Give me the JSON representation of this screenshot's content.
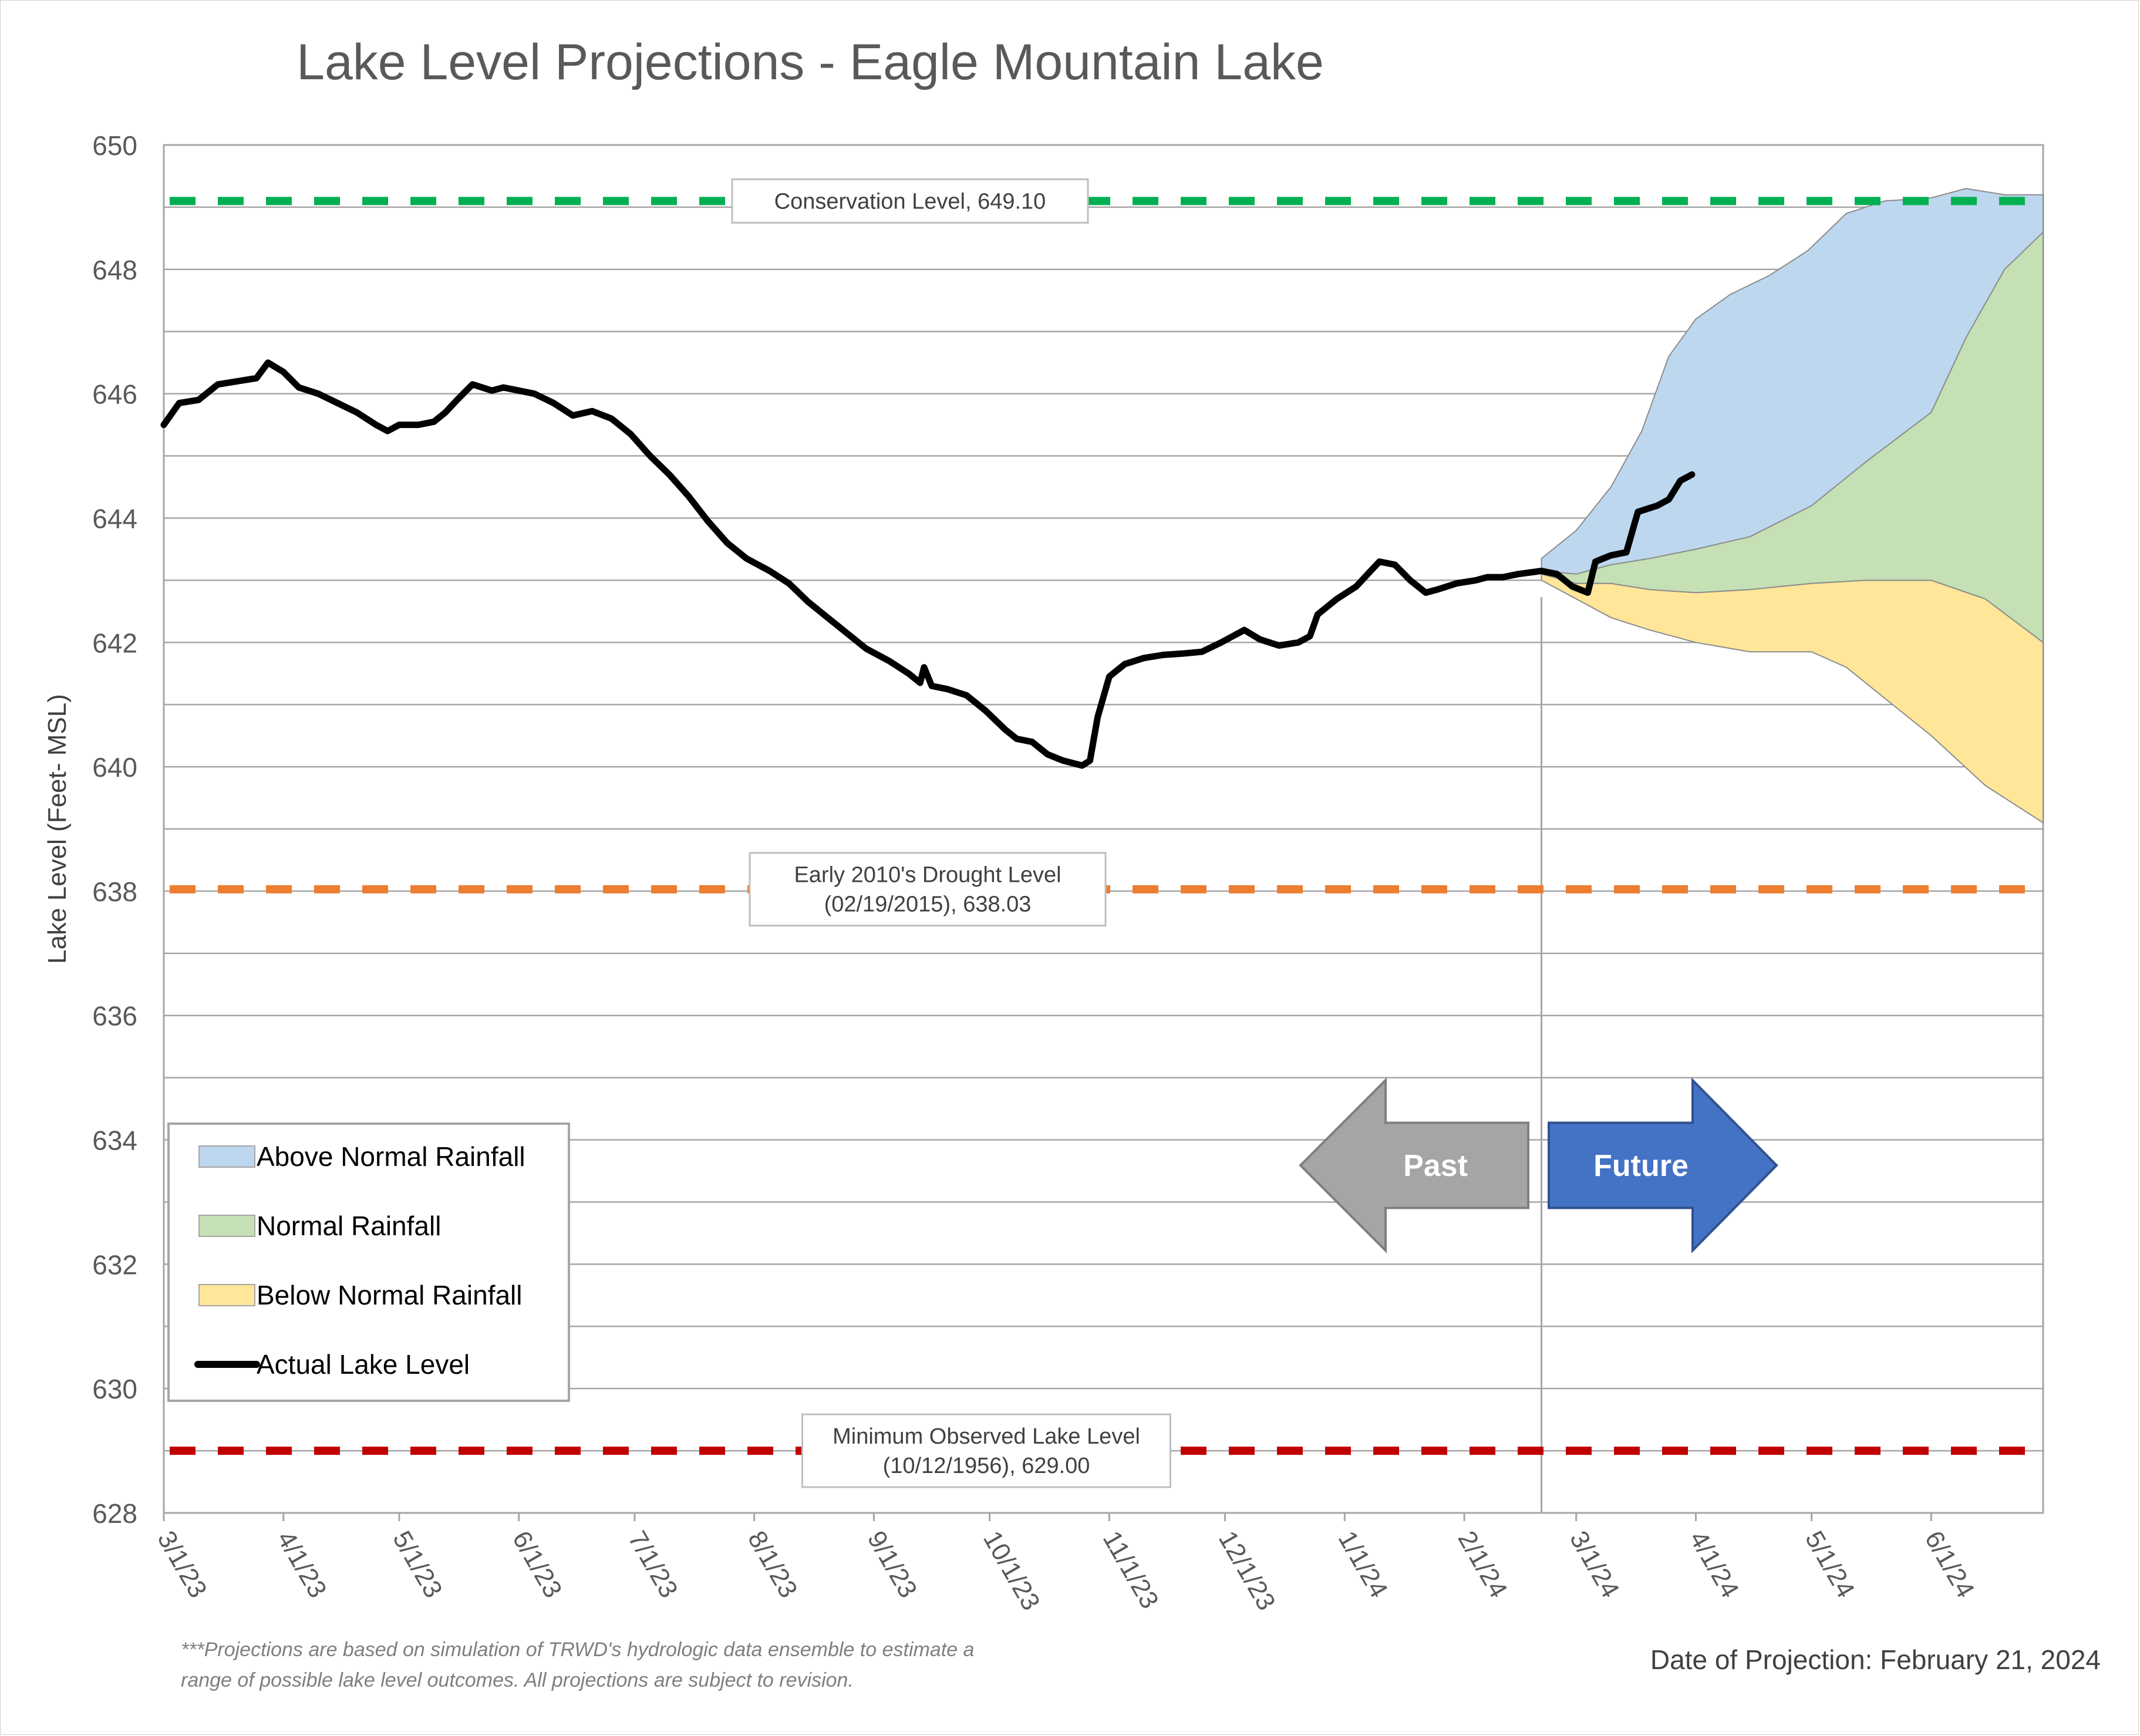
{
  "chart_data": {
    "type": "area",
    "title": "Lake Level Projections - Eagle Mountain Lake",
    "ylabel": "Lake Level (Feet- MSL)",
    "xlabel": "",
    "ylim": [
      628,
      650
    ],
    "y_ticks": [
      628,
      630,
      632,
      634,
      636,
      638,
      640,
      642,
      644,
      646,
      648,
      650
    ],
    "x_ticks": [
      "3/1/23",
      "4/1/23",
      "5/1/23",
      "6/1/23",
      "7/1/23",
      "8/1/23",
      "9/1/23",
      "10/1/23",
      "11/1/23",
      "12/1/23",
      "1/1/24",
      "2/1/24",
      "3/1/24",
      "4/1/24",
      "5/1/24",
      "6/1/24"
    ],
    "x_range": [
      "2023-03-01",
      "2024-06-30"
    ],
    "projection_date_marker": "2024-02-21",
    "grid": "horizontal",
    "legend_position": "bottom-left",
    "colors": {
      "above": "#bdd7ee",
      "normal": "#c5e0b4",
      "below": "#ffe699",
      "actual": "#000000",
      "conservation": "#00b050",
      "drought": "#ed7d31",
      "minimum": "#c00000",
      "past_arrow": "#a5a5a5",
      "future_arrow": "#4472c4"
    },
    "legend": [
      {
        "label": "Above Normal Rainfall",
        "key": "above",
        "kind": "area"
      },
      {
        "label": "Normal Rainfall",
        "key": "normal",
        "kind": "area"
      },
      {
        "label": "Below Normal Rainfall",
        "key": "below",
        "kind": "area"
      },
      {
        "label": "Actual Lake Level",
        "key": "actual",
        "kind": "line"
      }
    ],
    "reference_lines": [
      {
        "key": "conservation",
        "value": 649.1,
        "label_lines": [
          "Conservation Level, 649.10"
        ]
      },
      {
        "key": "drought",
        "value": 638.03,
        "label_lines": [
          "Early 2010's Drought Level",
          "(02/19/2015), 638.03"
        ]
      },
      {
        "key": "minimum",
        "value": 629.0,
        "label_lines": [
          "Minimum Observed Lake Level",
          "(10/12/1956), 629.00"
        ]
      }
    ],
    "actual_lake_level": [
      [
        "2023-03-01",
        645.5
      ],
      [
        "2023-03-05",
        645.85
      ],
      [
        "2023-03-10",
        645.9
      ],
      [
        "2023-03-15",
        646.15
      ],
      [
        "2023-03-20",
        646.2
      ],
      [
        "2023-03-25",
        646.25
      ],
      [
        "2023-03-28",
        646.5
      ],
      [
        "2023-04-01",
        646.35
      ],
      [
        "2023-04-05",
        646.1
      ],
      [
        "2023-04-10",
        646.0
      ],
      [
        "2023-04-15",
        645.85
      ],
      [
        "2023-04-20",
        645.7
      ],
      [
        "2023-04-25",
        645.5
      ],
      [
        "2023-04-28",
        645.4
      ],
      [
        "2023-05-01",
        645.5
      ],
      [
        "2023-05-06",
        645.5
      ],
      [
        "2023-05-10",
        645.55
      ],
      [
        "2023-05-13",
        645.7
      ],
      [
        "2023-05-16",
        645.9
      ],
      [
        "2023-05-20",
        646.15
      ],
      [
        "2023-05-25",
        646.05
      ],
      [
        "2023-05-28",
        646.1
      ],
      [
        "2023-06-01",
        646.05
      ],
      [
        "2023-06-05",
        646.0
      ],
      [
        "2023-06-10",
        645.85
      ],
      [
        "2023-06-15",
        645.65
      ],
      [
        "2023-06-20",
        645.72
      ],
      [
        "2023-06-25",
        645.6
      ],
      [
        "2023-06-30",
        645.35
      ],
      [
        "2023-07-05",
        645.0
      ],
      [
        "2023-07-10",
        644.7
      ],
      [
        "2023-07-15",
        644.35
      ],
      [
        "2023-07-20",
        643.95
      ],
      [
        "2023-07-25",
        643.6
      ],
      [
        "2023-07-30",
        643.35
      ],
      [
        "2023-08-05",
        643.15
      ],
      [
        "2023-08-10",
        642.95
      ],
      [
        "2023-08-15",
        642.65
      ],
      [
        "2023-08-20",
        642.4
      ],
      [
        "2023-08-25",
        642.15
      ],
      [
        "2023-08-30",
        641.9
      ],
      [
        "2023-09-05",
        641.7
      ],
      [
        "2023-09-10",
        641.5
      ],
      [
        "2023-09-13",
        641.35
      ],
      [
        "2023-09-14",
        641.6
      ],
      [
        "2023-09-16",
        641.3
      ],
      [
        "2023-09-20",
        641.25
      ],
      [
        "2023-09-25",
        641.15
      ],
      [
        "2023-09-30",
        640.9
      ],
      [
        "2023-10-05",
        640.6
      ],
      [
        "2023-10-08",
        640.45
      ],
      [
        "2023-10-12",
        640.4
      ],
      [
        "2023-10-16",
        640.2
      ],
      [
        "2023-10-20",
        640.1
      ],
      [
        "2023-10-25",
        640.02
      ],
      [
        "2023-10-27",
        640.1
      ],
      [
        "2023-10-29",
        640.8
      ],
      [
        "2023-11-01",
        641.45
      ],
      [
        "2023-11-05",
        641.65
      ],
      [
        "2023-11-10",
        641.75
      ],
      [
        "2023-11-15",
        641.8
      ],
      [
        "2023-11-20",
        641.82
      ],
      [
        "2023-11-25",
        641.85
      ],
      [
        "2023-11-30",
        642.0
      ],
      [
        "2023-12-03",
        642.1
      ],
      [
        "2023-12-06",
        642.2
      ],
      [
        "2023-12-10",
        642.05
      ],
      [
        "2023-12-15",
        641.95
      ],
      [
        "2023-12-20",
        642.0
      ],
      [
        "2023-12-23",
        642.1
      ],
      [
        "2023-12-25",
        642.45
      ],
      [
        "2023-12-30",
        642.7
      ],
      [
        "2024-01-04",
        642.9
      ],
      [
        "2024-01-07",
        643.1
      ],
      [
        "2024-01-10",
        643.3
      ],
      [
        "2024-01-14",
        643.25
      ],
      [
        "2024-01-18",
        643.0
      ],
      [
        "2024-01-22",
        642.8
      ],
      [
        "2024-01-25",
        642.85
      ],
      [
        "2024-01-30",
        642.95
      ],
      [
        "2024-02-04",
        643.0
      ],
      [
        "2024-02-07",
        643.05
      ],
      [
        "2024-02-11",
        643.05
      ],
      [
        "2024-02-15",
        643.1
      ],
      [
        "2024-02-21",
        643.15
      ],
      [
        "2024-02-25",
        643.1
      ],
      [
        "2024-02-29",
        642.9
      ],
      [
        "2024-03-04",
        642.8
      ],
      [
        "2024-03-06",
        643.3
      ],
      [
        "2024-03-10",
        643.4
      ],
      [
        "2024-03-14",
        643.45
      ],
      [
        "2024-03-17",
        644.1
      ],
      [
        "2024-03-22",
        644.2
      ],
      [
        "2024-03-25",
        644.3
      ],
      [
        "2024-03-28",
        644.6
      ],
      [
        "2024-03-31",
        644.7
      ]
    ],
    "projections": {
      "above_normal": {
        "upper": [
          [
            "2024-02-21",
            643.35
          ],
          [
            "2024-03-01",
            643.8
          ],
          [
            "2024-03-10",
            644.5
          ],
          [
            "2024-03-18",
            645.4
          ],
          [
            "2024-03-25",
            646.6
          ],
          [
            "2024-04-01",
            647.2
          ],
          [
            "2024-04-10",
            647.6
          ],
          [
            "2024-04-20",
            647.9
          ],
          [
            "2024-04-30",
            648.3
          ],
          [
            "2024-05-10",
            648.9
          ],
          [
            "2024-05-20",
            649.1
          ],
          [
            "2024-06-01",
            649.15
          ],
          [
            "2024-06-10",
            649.3
          ],
          [
            "2024-06-20",
            649.2
          ],
          [
            "2024-06-30",
            649.2
          ]
        ],
        "lower": [
          [
            "2024-02-21",
            643.15
          ],
          [
            "2024-03-01",
            643.1
          ],
          [
            "2024-03-10",
            643.25
          ],
          [
            "2024-03-20",
            643.35
          ],
          [
            "2024-04-01",
            643.5
          ],
          [
            "2024-04-15",
            643.7
          ],
          [
            "2024-05-01",
            644.2
          ],
          [
            "2024-05-15",
            644.9
          ],
          [
            "2024-06-01",
            645.7
          ],
          [
            "2024-06-10",
            646.9
          ],
          [
            "2024-06-20",
            648.0
          ],
          [
            "2024-06-30",
            648.6
          ]
        ]
      },
      "normal": {
        "upper": [
          [
            "2024-02-21",
            643.15
          ],
          [
            "2024-03-01",
            643.1
          ],
          [
            "2024-03-10",
            643.25
          ],
          [
            "2024-03-20",
            643.35
          ],
          [
            "2024-04-01",
            643.5
          ],
          [
            "2024-04-15",
            643.7
          ],
          [
            "2024-05-01",
            644.2
          ],
          [
            "2024-05-15",
            644.9
          ],
          [
            "2024-06-01",
            645.7
          ],
          [
            "2024-06-10",
            646.9
          ],
          [
            "2024-06-20",
            648.0
          ],
          [
            "2024-06-30",
            648.6
          ]
        ],
        "lower": [
          [
            "2024-02-21",
            643.1
          ],
          [
            "2024-03-01",
            642.95
          ],
          [
            "2024-03-10",
            642.95
          ],
          [
            "2024-03-20",
            642.85
          ],
          [
            "2024-04-01",
            642.8
          ],
          [
            "2024-04-15",
            642.85
          ],
          [
            "2024-05-01",
            642.95
          ],
          [
            "2024-05-15",
            643.0
          ],
          [
            "2024-06-01",
            643.0
          ],
          [
            "2024-06-15",
            642.7
          ],
          [
            "2024-06-30",
            642.0
          ]
        ]
      },
      "below_normal": {
        "upper": [
          [
            "2024-02-21",
            643.1
          ],
          [
            "2024-03-01",
            642.95
          ],
          [
            "2024-03-10",
            642.95
          ],
          [
            "2024-03-20",
            642.85
          ],
          [
            "2024-04-01",
            642.8
          ],
          [
            "2024-04-15",
            642.85
          ],
          [
            "2024-05-01",
            642.95
          ],
          [
            "2024-05-15",
            643.0
          ],
          [
            "2024-06-01",
            643.0
          ],
          [
            "2024-06-15",
            642.7
          ],
          [
            "2024-06-30",
            642.0
          ]
        ],
        "lower": [
          [
            "2024-02-21",
            643.0
          ],
          [
            "2024-03-01",
            642.7
          ],
          [
            "2024-03-10",
            642.4
          ],
          [
            "2024-03-20",
            642.2
          ],
          [
            "2024-04-01",
            642.0
          ],
          [
            "2024-04-15",
            641.85
          ],
          [
            "2024-05-01",
            641.85
          ],
          [
            "2024-05-10",
            641.6
          ],
          [
            "2024-05-20",
            641.1
          ],
          [
            "2024-06-01",
            640.5
          ],
          [
            "2024-06-15",
            639.7
          ],
          [
            "2024-06-30",
            639.1
          ]
        ]
      }
    },
    "arrows": {
      "past": "Past",
      "future": "Future"
    },
    "footnote_lines": [
      "***Projections are based on simulation of TRWD's hydrologic data ensemble to estimate a",
      "range of possible lake level outcomes.  All projections are subject to revision."
    ],
    "projection_date_text": "Date of Projection: February 21, 2024"
  }
}
